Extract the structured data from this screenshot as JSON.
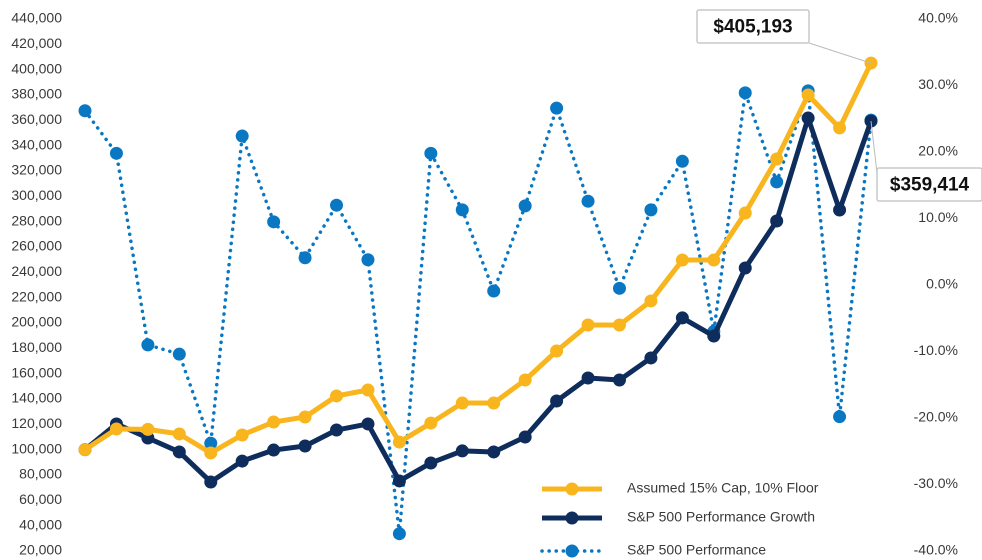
{
  "chart_data": {
    "type": "line",
    "categories": [
      null,
      null,
      null,
      null,
      null,
      null,
      null,
      null,
      null,
      null,
      null,
      null,
      null,
      null,
      null,
      null,
      null,
      null,
      null,
      null,
      null,
      null,
      null,
      null,
      null,
      null
    ],
    "series": [
      {
        "name": "Assumed 15% Cap, 10% Floor",
        "color": "#f9b51e",
        "values": [
          100000,
          116300,
          116000,
          112400,
          97400,
          111600,
          121800,
          125800,
          142400,
          147100,
          106000,
          121000,
          136800,
          136800,
          155000,
          177900,
          198400,
          198400,
          217400,
          249700,
          249700,
          286800,
          329500,
          380000,
          354000,
          405193
        ],
        "value_labels": [
          null,
          null,
          null,
          null,
          null,
          null,
          null,
          null,
          null,
          null,
          null,
          null,
          null,
          null,
          null,
          null,
          null,
          null,
          null,
          null,
          null,
          null,
          null,
          null,
          null,
          "$405,193"
        ]
      },
      {
        "name": "S&P 500 Performance Growth",
        "color": "#0e2d5c",
        "values": [
          100000,
          120300,
          109200,
          98200,
          74500,
          91000,
          99700,
          102900,
          115500,
          120300,
          75300,
          89500,
          99000,
          98200,
          110000,
          138400,
          156600,
          155000,
          172400,
          204000,
          189700,
          243400,
          280500,
          361800,
          289200,
          359414
        ],
        "value_labels": [
          null,
          null,
          null,
          null,
          null,
          null,
          null,
          null,
          null,
          null,
          null,
          null,
          null,
          null,
          null,
          null,
          null,
          null,
          null,
          null,
          null,
          null,
          null,
          null,
          null,
          "$359,414"
        ]
      },
      {
        "name": "S&P 500 Performance",
        "color": "#0a77c2",
        "axis": "y2",
        "dotted": true,
        "values": [
          26.2,
          19.8,
          -9.0,
          -10.4,
          -23.8,
          22.4,
          9.5,
          4.1,
          12.0,
          3.8,
          -37.4,
          19.8,
          11.3,
          -0.9,
          11.9,
          26.6,
          12.6,
          -0.5,
          11.3,
          18.6,
          -7.0,
          28.9,
          15.5,
          29.2,
          -19.8,
          24.8
        ]
      }
    ],
    "ylim": [
      20000,
      440000
    ],
    "yticks": [
      {
        "value": 20000,
        "label": "20,000"
      },
      {
        "value": 40000,
        "label": "40,000"
      },
      {
        "value": 60000,
        "label": "60,000"
      },
      {
        "value": 80000,
        "label": "80,000"
      },
      {
        "value": 100000,
        "label": "100,000"
      },
      {
        "value": 120000,
        "label": "120,000"
      },
      {
        "value": 140000,
        "label": "140,000"
      },
      {
        "value": 160000,
        "label": "160,000"
      },
      {
        "value": 180000,
        "label": "180,000"
      },
      {
        "value": 200000,
        "label": "200,000"
      },
      {
        "value": 220000,
        "label": "220,000"
      },
      {
        "value": 240000,
        "label": "240,000"
      },
      {
        "value": 260000,
        "label": "260,000"
      },
      {
        "value": 280000,
        "label": "280,000"
      },
      {
        "value": 300000,
        "label": "300,000"
      },
      {
        "value": 320000,
        "label": "320,000"
      },
      {
        "value": 340000,
        "label": "340,000"
      },
      {
        "value": 360000,
        "label": "360,000"
      },
      {
        "value": 380000,
        "label": "380,000"
      },
      {
        "value": 400000,
        "label": "400,000"
      },
      {
        "value": 420000,
        "label": "420,000"
      },
      {
        "value": 440000,
        "label": "440,000"
      }
    ],
    "y2lim": [
      -40,
      40
    ],
    "y2ticks": [
      {
        "value": -40,
        "label": "-40.0%"
      },
      {
        "value": -30,
        "label": "-30.0%"
      },
      {
        "value": -20,
        "label": "-20.0%"
      },
      {
        "value": -10,
        "label": "-10.0%"
      },
      {
        "value": 0,
        "label": "0.0%"
      },
      {
        "value": 10,
        "label": "10.0%"
      },
      {
        "value": 20,
        "label": "20.0%"
      },
      {
        "value": 30,
        "label": "30.0%"
      },
      {
        "value": 40,
        "label": "40.0%"
      }
    ],
    "grid": false,
    "legend": "lower right"
  }
}
